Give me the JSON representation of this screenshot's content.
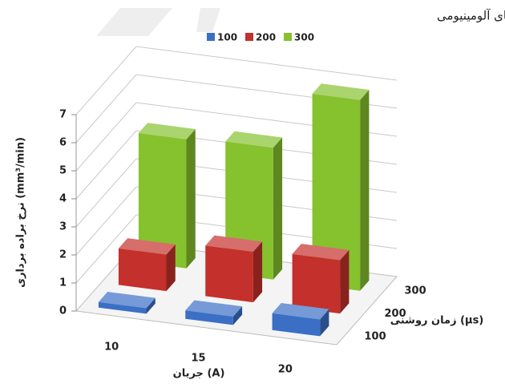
{
  "chart_data": {
    "type": "bar3d",
    "title": "الف) الکترودهای آلومینیومی",
    "y_label": "نرخ براده برداری (mm³/min)",
    "x_label": "جریان (A)",
    "z_label": "زمان روشنی (µs)",
    "categories": [
      "10",
      "15",
      "20"
    ],
    "series": [
      {
        "name": "100",
        "color": "#3b6fc6",
        "values": [
          0.2,
          0.3,
          0.6
        ]
      },
      {
        "name": "200",
        "color": "#c4302b",
        "values": [
          1.3,
          1.8,
          1.9
        ]
      },
      {
        "name": "300",
        "color": "#86c12e",
        "values": [
          4.6,
          4.7,
          6.8
        ]
      }
    ],
    "ylim": [
      0,
      7
    ],
    "yticks": [
      0,
      1,
      2,
      3,
      4,
      5,
      6,
      7
    ],
    "grid": true
  }
}
